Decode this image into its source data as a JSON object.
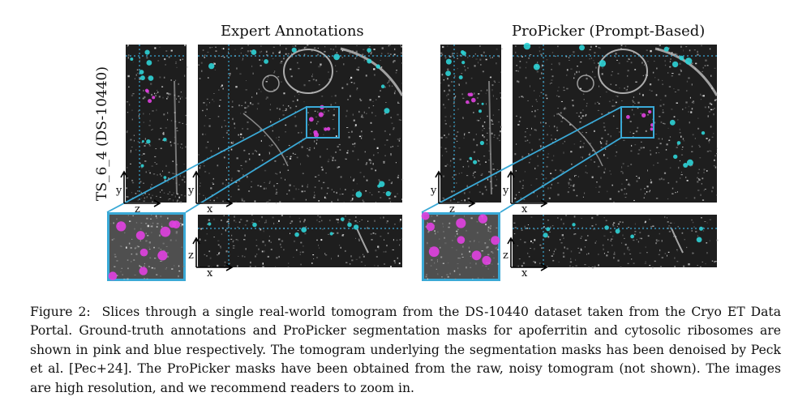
{
  "figure": {
    "panels": [
      {
        "title": "Expert Annotations"
      },
      {
        "title": "ProPicker (Prompt-Based)"
      }
    ],
    "row_label": "TS_6_4 (DS-10440)",
    "axis_labels": {
      "x": "x",
      "y": "y",
      "z": "z"
    },
    "colors": {
      "apoferritin": "#e040e0",
      "ribosome": "#2ed3d6",
      "highlight_box": "#3aa9d6",
      "background": "#1e1e1e"
    }
  },
  "caption": {
    "label": "Figure 2:",
    "text": "Slices through a single real-world tomogram from the DS-10440 dataset taken from the Cryo ET Data Portal. Ground-truth annotations and ProPicker segmentation masks for apoferritin and cytosolic ribosomes are shown in pink and blue respectively. The tomogram underlying the segmentation masks has been denoised by Peck et al. [Pec+24]. The ProPicker masks have been obtained from the raw, noisy tomogram (not shown). The images are high resolution, and we recommend readers to zoom in."
  }
}
